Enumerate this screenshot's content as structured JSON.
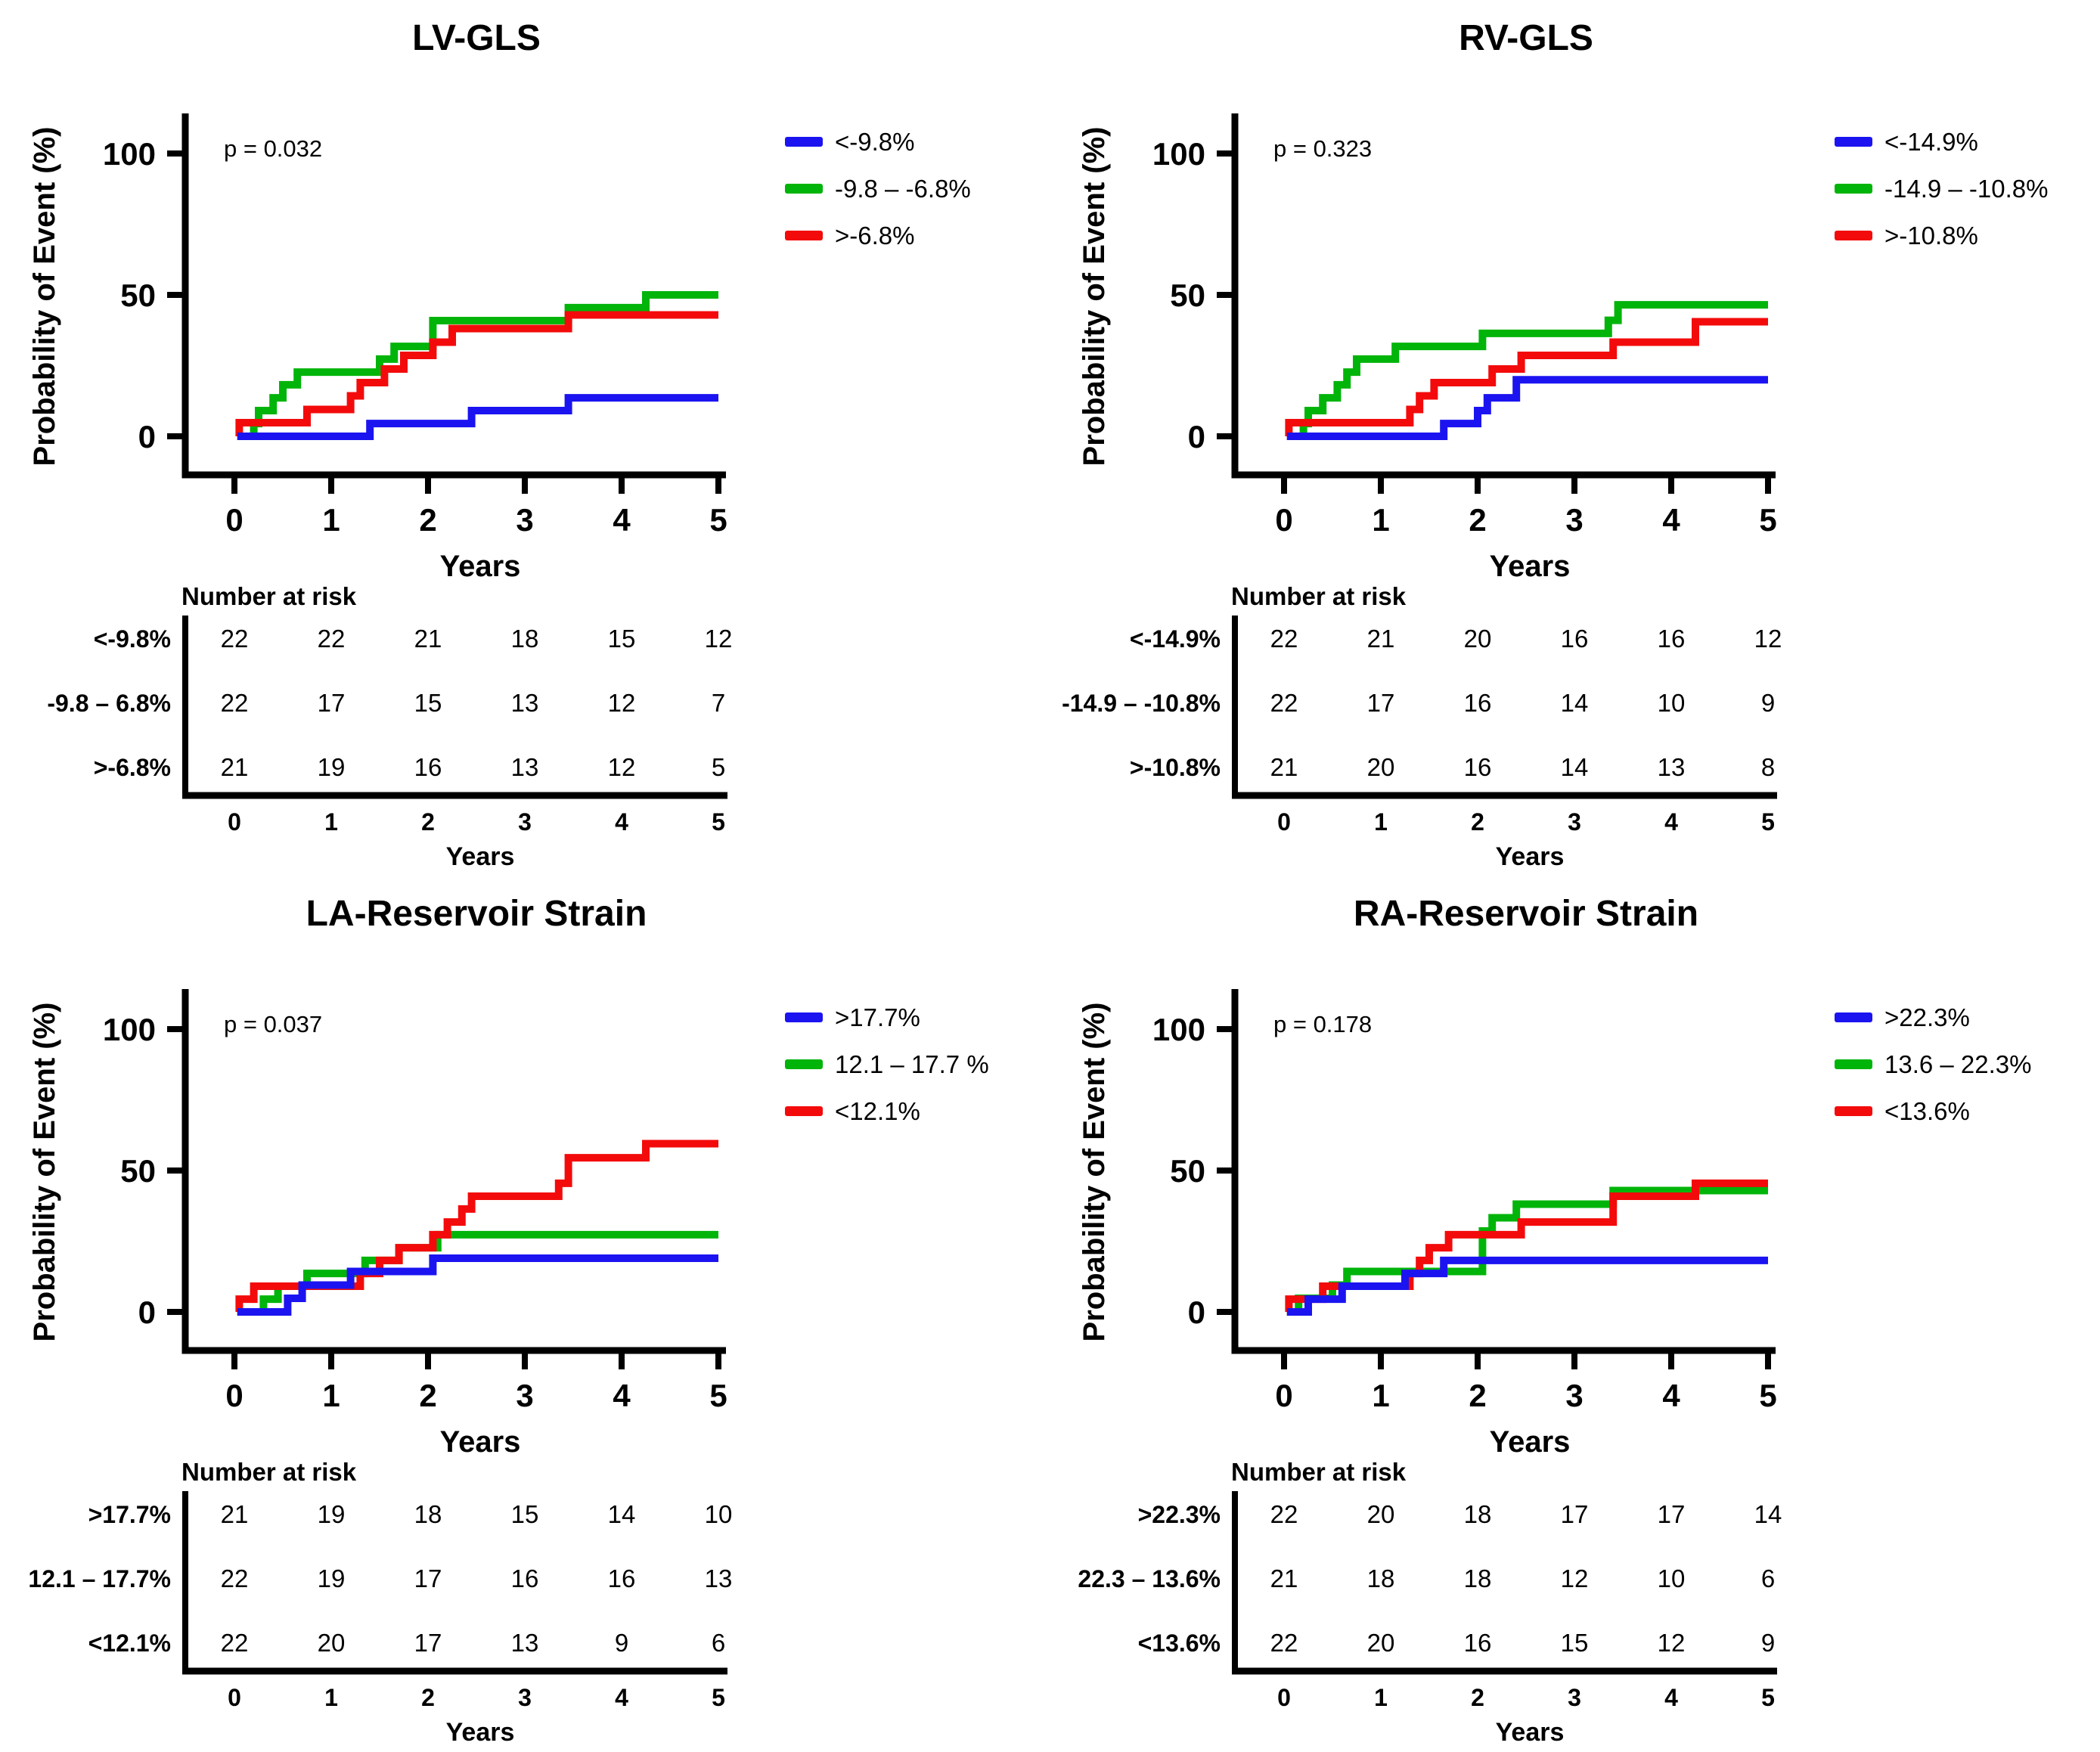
{
  "chart_data": [
    {
      "type": "line",
      "subtype": "kaplan-meier-step",
      "title": "LV-GLS",
      "p_value": "p = 0.032",
      "xlabel": "Years",
      "ylabel": "Probability of Event (%)",
      "xlim": [
        0,
        5
      ],
      "ylim": [
        0,
        100
      ],
      "xticks": [
        0,
        1,
        2,
        3,
        4,
        5
      ],
      "yticks": [
        0,
        50,
        100
      ],
      "grid": false,
      "legend_position": "top-right",
      "legend": [
        {
          "label": "<-9.8%",
          "color": "#1b14f0"
        },
        {
          "label": "-9.8 – -6.8%",
          "color": "#00b40a"
        },
        {
          "label": ">-6.8%",
          "color": "#f30b0b"
        }
      ],
      "series": [
        {
          "name": "<-9.8%",
          "color": "#1b14f0",
          "start": 0,
          "steps": [
            [
              1.4,
              4.5
            ],
            [
              2.45,
              9.1
            ],
            [
              3.45,
              13.6
            ]
          ],
          "end_x": 5
        },
        {
          "name": "-9.8 – -6.8%",
          "color": "#00b40a",
          "start": 0,
          "steps": [
            [
              0.2,
              4.5
            ],
            [
              0.25,
              9.1
            ],
            [
              0.4,
              13.6
            ],
            [
              0.5,
              18.2
            ],
            [
              0.65,
              22.7
            ],
            [
              1.5,
              27.3
            ],
            [
              1.65,
              31.8
            ],
            [
              2.05,
              40.9
            ],
            [
              3.45,
              45.5
            ],
            [
              4.25,
              50
            ]
          ],
          "end_x": 5
        },
        {
          "name": ">-6.8%",
          "color": "#f30b0b",
          "start": 0,
          "steps": [
            [
              0.05,
              4.8
            ],
            [
              0.75,
              9.5
            ],
            [
              1.2,
              14.3
            ],
            [
              1.3,
              19
            ],
            [
              1.55,
              23.8
            ],
            [
              1.75,
              28.6
            ],
            [
              2.05,
              33.3
            ],
            [
              2.25,
              38.1
            ],
            [
              3.45,
              42.9
            ]
          ],
          "end_x": 5
        }
      ],
      "risk_table": {
        "header": "Number at risk",
        "xlabel": "Years",
        "xticks": [
          0,
          1,
          2,
          3,
          4,
          5
        ],
        "rows": [
          {
            "label": "<-9.8%",
            "color": "#1b14f0",
            "counts": [
              22,
              22,
              21,
              18,
              15,
              12
            ]
          },
          {
            "label": "-9.8 – 6.8%",
            "color": "#00b40a",
            "counts": [
              22,
              17,
              15,
              13,
              12,
              7
            ]
          },
          {
            "label": ">-6.8%",
            "color": "#f30b0b",
            "counts": [
              21,
              19,
              16,
              13,
              12,
              5
            ]
          }
        ]
      }
    },
    {
      "type": "line",
      "subtype": "kaplan-meier-step",
      "title": "RV-GLS",
      "p_value": "p = 0.323",
      "xlabel": "Years",
      "ylabel": "Probability of Event (%)",
      "xlim": [
        0,
        5
      ],
      "ylim": [
        0,
        100
      ],
      "xticks": [
        0,
        1,
        2,
        3,
        4,
        5
      ],
      "yticks": [
        0,
        50,
        100
      ],
      "grid": false,
      "legend_position": "top-right",
      "legend": [
        {
          "label": "<-14.9%",
          "color": "#1b14f0"
        },
        {
          "label": "-14.9 – -10.8%",
          "color": "#00b40a"
        },
        {
          "label": ">-10.8%",
          "color": "#f30b0b"
        }
      ],
      "series": [
        {
          "name": "<-14.9%",
          "color": "#1b14f0",
          "start": 0,
          "steps": [
            [
              1.65,
              4.5
            ],
            [
              2.0,
              9.1
            ],
            [
              2.1,
              13.6
            ],
            [
              2.4,
              20
            ]
          ],
          "end_x": 5
        },
        {
          "name": "-14.9 – -10.8%",
          "color": "#00b40a",
          "start": 0,
          "steps": [
            [
              0.2,
              4.5
            ],
            [
              0.25,
              9.1
            ],
            [
              0.4,
              13.6
            ],
            [
              0.55,
              18.2
            ],
            [
              0.65,
              22.7
            ],
            [
              0.75,
              27.3
            ],
            [
              1.15,
              31.8
            ],
            [
              2.05,
              36.4
            ],
            [
              3.35,
              41
            ],
            [
              3.45,
              46.5
            ]
          ],
          "end_x": 5
        },
        {
          "name": ">-10.8%",
          "color": "#f30b0b",
          "start": 0,
          "steps": [
            [
              0.05,
              4.8
            ],
            [
              1.3,
              9.5
            ],
            [
              1.4,
              14.3
            ],
            [
              1.55,
              19
            ],
            [
              2.15,
              23.8
            ],
            [
              2.45,
              28.6
            ],
            [
              3.4,
              33.3
            ],
            [
              4.25,
              40.5
            ]
          ],
          "end_x": 5
        }
      ],
      "risk_table": {
        "header": "Number at risk",
        "xlabel": "Years",
        "xticks": [
          0,
          1,
          2,
          3,
          4,
          5
        ],
        "rows": [
          {
            "label": "<-14.9%",
            "color": "#1b14f0",
            "counts": [
              22,
              21,
              20,
              16,
              16,
              12
            ]
          },
          {
            "label": "-14.9 – -10.8%",
            "color": "#00b40a",
            "counts": [
              22,
              17,
              16,
              14,
              10,
              9
            ]
          },
          {
            "label": ">-10.8%",
            "color": "#f30b0b",
            "counts": [
              21,
              20,
              16,
              14,
              13,
              8
            ]
          }
        ]
      }
    },
    {
      "type": "line",
      "subtype": "kaplan-meier-step",
      "title": "LA-Reservoir Strain",
      "p_value": "p = 0.037",
      "xlabel": "Years",
      "ylabel": "Probability of Event (%)",
      "xlim": [
        0,
        5
      ],
      "ylim": [
        0,
        100
      ],
      "xticks": [
        0,
        1,
        2,
        3,
        4,
        5
      ],
      "yticks": [
        0,
        50,
        100
      ],
      "grid": false,
      "legend_position": "top-right",
      "legend": [
        {
          "label": ">17.7%",
          "color": "#1b14f0"
        },
        {
          "label": "12.1 – 17.7 %",
          "color": "#00b40a"
        },
        {
          "label": "<12.1%",
          "color": "#f30b0b"
        }
      ],
      "series": [
        {
          "name": ">17.7%",
          "color": "#1b14f0",
          "start": 0,
          "steps": [
            [
              0.55,
              4.8
            ],
            [
              0.7,
              9.5
            ],
            [
              1.2,
              14.3
            ],
            [
              2.05,
              19
            ]
          ],
          "end_x": 5
        },
        {
          "name": "12.1 – 17.7 %",
          "color": "#00b40a",
          "start": 0,
          "steps": [
            [
              0.3,
              4.5
            ],
            [
              0.45,
              9.1
            ],
            [
              0.75,
              13.6
            ],
            [
              1.35,
              18.2
            ],
            [
              1.7,
              22.7
            ],
            [
              2.1,
              27.3
            ]
          ],
          "end_x": 5
        },
        {
          "name": "<12.1%",
          "color": "#f30b0b",
          "start": 0,
          "steps": [
            [
              0.05,
              4.5
            ],
            [
              0.2,
              9.1
            ],
            [
              1.3,
              13.6
            ],
            [
              1.5,
              18.2
            ],
            [
              1.7,
              22.7
            ],
            [
              2.05,
              27.3
            ],
            [
              2.2,
              31.8
            ],
            [
              2.35,
              36.4
            ],
            [
              2.45,
              40.9
            ],
            [
              3.35,
              45.5
            ],
            [
              3.45,
              54.5
            ],
            [
              4.25,
              59.5
            ]
          ],
          "end_x": 5
        }
      ],
      "risk_table": {
        "header": "Number at risk",
        "xlabel": "Years",
        "xticks": [
          0,
          1,
          2,
          3,
          4,
          5
        ],
        "rows": [
          {
            "label": ">17.7%",
            "color": "#1b14f0",
            "counts": [
              21,
              19,
              18,
              15,
              14,
              10
            ]
          },
          {
            "label": "12.1 – 17.7%",
            "color": "#00b40a",
            "counts": [
              22,
              19,
              17,
              16,
              16,
              13
            ]
          },
          {
            "label": "<12.1%",
            "color": "#f30b0b",
            "counts": [
              22,
              20,
              17,
              13,
              9,
              6
            ]
          }
        ]
      }
    },
    {
      "type": "line",
      "subtype": "kaplan-meier-step",
      "title": "RA-Reservoir Strain",
      "p_value": "p = 0.178",
      "xlabel": "Years",
      "ylabel": "Probability of Event (%)",
      "xlim": [
        0,
        5
      ],
      "ylim": [
        0,
        100
      ],
      "xticks": [
        0,
        1,
        2,
        3,
        4,
        5
      ],
      "yticks": [
        0,
        50,
        100
      ],
      "grid": false,
      "legend_position": "top-right",
      "legend": [
        {
          "label": ">22.3%",
          "color": "#1b14f0"
        },
        {
          "label": "13.6 – 22.3%",
          "color": "#00b40a"
        },
        {
          "label": "<13.6%",
          "color": "#f30b0b"
        }
      ],
      "series": [
        {
          "name": ">22.3%",
          "color": "#1b14f0",
          "start": 0,
          "steps": [
            [
              0.25,
              4.5
            ],
            [
              0.6,
              9.1
            ],
            [
              1.25,
              13.6
            ],
            [
              1.65,
              18.2
            ]
          ],
          "end_x": 5
        },
        {
          "name": "13.6 – 22.3%",
          "color": "#00b40a",
          "start": 0,
          "steps": [
            [
              0.15,
              4.8
            ],
            [
              0.5,
              9.5
            ],
            [
              0.65,
              14.3
            ],
            [
              2.05,
              28.6
            ],
            [
              2.15,
              33.3
            ],
            [
              2.4,
              38.1
            ],
            [
              3.4,
              42.9
            ]
          ],
          "end_x": 5
        },
        {
          "name": "<13.6%",
          "color": "#f30b0b",
          "start": 0,
          "steps": [
            [
              0.05,
              4.5
            ],
            [
              0.4,
              9.1
            ],
            [
              1.3,
              13.6
            ],
            [
              1.4,
              18.2
            ],
            [
              1.5,
              22.7
            ],
            [
              1.7,
              27.3
            ],
            [
              2.45,
              31.8
            ],
            [
              3.4,
              40.9
            ],
            [
              4.25,
              45.5
            ]
          ],
          "end_x": 5
        }
      ],
      "risk_table": {
        "header": "Number at risk",
        "xlabel": "Years",
        "xticks": [
          0,
          1,
          2,
          3,
          4,
          5
        ],
        "rows": [
          {
            "label": ">22.3%",
            "color": "#1b14f0",
            "counts": [
              22,
              20,
              18,
              17,
              17,
              14
            ]
          },
          {
            "label": "22.3 – 13.6%",
            "color": "#00b40a",
            "counts": [
              21,
              18,
              18,
              12,
              10,
              6
            ]
          },
          {
            "label": "<13.6%",
            "color": "#f30b0b",
            "counts": [
              22,
              20,
              16,
              15,
              12,
              9
            ]
          }
        ]
      }
    }
  ]
}
